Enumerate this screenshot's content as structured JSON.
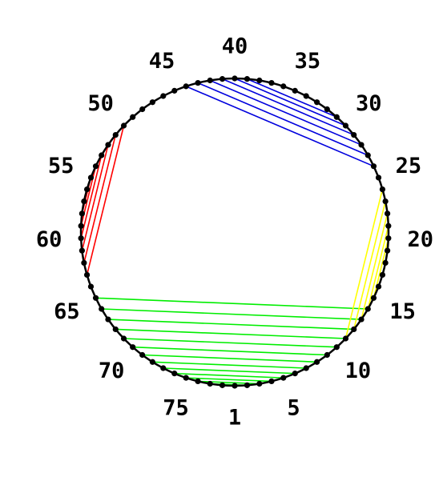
{
  "diagram": {
    "point_count": 78,
    "circle_color": "#000000",
    "dot_color": "#000000",
    "labels": [
      {
        "index": 1,
        "text": "1"
      },
      {
        "index": 5,
        "text": "5"
      },
      {
        "index": 10,
        "text": "10"
      },
      {
        "index": 15,
        "text": "15"
      },
      {
        "index": 20,
        "text": "20"
      },
      {
        "index": 25,
        "text": "25"
      },
      {
        "index": 30,
        "text": "30"
      },
      {
        "index": 35,
        "text": "35"
      },
      {
        "index": 40,
        "text": "40"
      },
      {
        "index": 45,
        "text": "45"
      },
      {
        "index": 50,
        "text": "50"
      },
      {
        "index": 55,
        "text": "55"
      },
      {
        "index": 60,
        "text": "60"
      },
      {
        "index": 65,
        "text": "65"
      },
      {
        "index": 70,
        "text": "70"
      },
      {
        "index": 75,
        "text": "75"
      }
    ],
    "chord_groups": [
      {
        "name": "green",
        "color": "#00ee00",
        "pairs": [
          [
            2,
            77
          ],
          [
            3,
            76
          ],
          [
            4,
            75
          ],
          [
            5,
            74
          ],
          [
            6,
            73
          ],
          [
            7,
            72
          ],
          [
            8,
            71
          ],
          [
            9,
            70
          ],
          [
            10,
            69
          ],
          [
            11,
            68
          ],
          [
            12,
            67
          ],
          [
            13,
            66
          ],
          [
            14,
            65
          ]
        ]
      },
      {
        "name": "yellow",
        "color": "#ffff00",
        "pairs": [
          [
            11,
            24
          ],
          [
            12,
            23
          ],
          [
            13,
            22
          ],
          [
            14,
            21
          ],
          [
            15,
            20
          ]
        ]
      },
      {
        "name": "blue",
        "color": "#0000dd",
        "pairs": [
          [
            26,
            44
          ],
          [
            27,
            43
          ],
          [
            28,
            42
          ],
          [
            29,
            41
          ],
          [
            30,
            40
          ],
          [
            31,
            39
          ]
        ]
      },
      {
        "name": "red",
        "color": "#ff0000",
        "pairs": [
          [
            50,
            63
          ],
          [
            51,
            62
          ],
          [
            52,
            61
          ],
          [
            53,
            60
          ],
          [
            54,
            59
          ],
          [
            55,
            58
          ]
        ]
      }
    ]
  }
}
